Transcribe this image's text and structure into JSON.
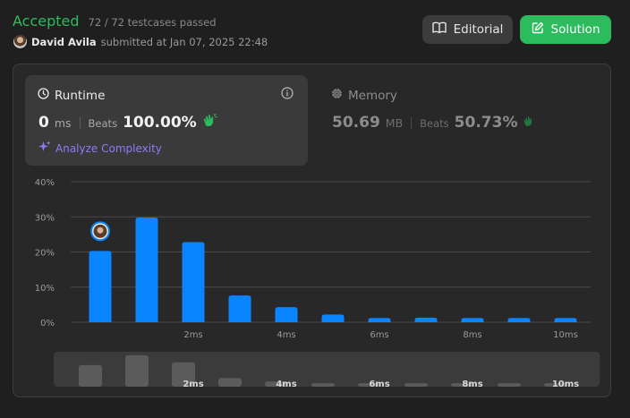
{
  "header": {
    "status": "Accepted",
    "testcases": "72 / 72 testcases passed",
    "username": "David Avila",
    "submitted_at": "submitted at Jan 07, 2025 22:48"
  },
  "buttons": {
    "editorial": "Editorial",
    "solution": "Solution"
  },
  "runtime": {
    "label": "Runtime",
    "value": "0",
    "unit": "ms",
    "beats_label": "Beats",
    "beats_value": "100.00%",
    "analyze_label": "Analyze Complexity"
  },
  "memory": {
    "label": "Memory",
    "value": "50.69",
    "unit": "MB",
    "beats_label": "Beats",
    "beats_value": "50.73%"
  },
  "colors": {
    "accepted": "#2cbb5d",
    "bar": "#0a84ff",
    "analyze": "#8b7cf6"
  },
  "chart_data": {
    "type": "bar",
    "ylim": [
      0,
      40
    ],
    "yticks": [
      "0%",
      "10%",
      "20%",
      "30%",
      "40%"
    ],
    "ytick_values": [
      0,
      10,
      20,
      30,
      40
    ],
    "values": [
      20.3,
      29.8,
      22.8,
      7.6,
      4.3,
      2.2,
      1.2,
      1.3,
      1.2,
      1.2,
      1.2
    ],
    "xtick_labels": [
      "",
      "",
      "2ms",
      "",
      "4ms",
      "",
      "6ms",
      "",
      "8ms",
      "",
      "10ms"
    ],
    "user_bar_index": 0,
    "overview_values": [
      6.2,
      9.0,
      7.0,
      2.5,
      1.5,
      1.0,
      1.0,
      1.0,
      1.0,
      1.0,
      1.0
    ]
  }
}
